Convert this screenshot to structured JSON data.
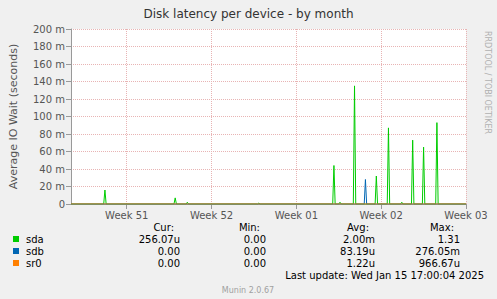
{
  "chart_data": {
    "type": "line",
    "title": "Disk latency per device - by month",
    "y_label": "Average IO Wait (seconds)",
    "side_text": "RRDTOOL / TOBI OETIKER",
    "footer": "Last update: Wed Jan 15 17:00:04 2025",
    "credit": "Munin 2.0.67",
    "legend_columns": [
      "Cur:",
      "Min:",
      "Avg:",
      "Max:"
    ],
    "x": [
      0,
      2.7,
      2.8,
      2.9,
      8.5,
      8.6,
      8.7,
      9.5,
      9.6,
      9.7,
      15.4,
      15.5,
      15.6,
      21.6,
      21.7,
      21.8,
      22.1,
      22.2,
      22.3,
      23.3,
      23.4,
      23.5,
      24.2,
      24.3,
      24.4,
      25.1,
      25.2,
      25.3,
      26.1,
      26.2,
      26.3,
      27.2,
      27.3,
      27.4,
      28.1,
      28.2,
      28.3,
      29.0,
      29.1,
      29.2,
      30.1,
      30.2,
      30.3,
      32.6
    ],
    "series": [
      {
        "name": "sda",
        "color": "#00cc00",
        "stats": [
          "256.07u",
          "0.00",
          "2.00m",
          "1.31"
        ],
        "values": [
          0,
          0,
          0.016,
          0,
          0,
          0.007,
          0,
          0,
          0.002,
          0,
          0,
          0.001,
          0,
          0,
          0.044,
          0,
          0,
          0.002,
          0,
          0,
          0.135,
          0,
          0,
          0,
          0,
          0,
          0.032,
          0,
          0,
          0.087,
          0,
          0,
          0.002,
          0,
          0,
          0.073,
          0,
          0,
          0.065,
          0,
          0,
          0.093,
          0,
          0
        ]
      },
      {
        "name": "sdb",
        "color": "#0066b3",
        "stats": [
          "0.00",
          "0.00",
          "83.19u",
          "276.05m"
        ],
        "values": [
          0,
          0,
          0,
          0,
          0,
          0,
          0,
          0,
          0,
          0,
          0,
          0,
          0,
          0,
          0,
          0,
          0,
          0,
          0,
          0,
          0,
          0,
          0,
          0.028,
          0,
          0,
          0,
          0,
          0,
          0,
          0,
          0,
          0,
          0,
          0,
          0,
          0,
          0,
          0,
          0,
          0,
          0,
          0,
          0
        ]
      },
      {
        "name": "sr0",
        "color": "#ff8000",
        "stats": [
          "0.00",
          "0.00",
          "1.22u",
          "966.67u"
        ],
        "values": [
          0,
          0,
          0,
          0,
          0,
          0,
          0,
          0,
          0,
          0,
          0,
          0,
          0,
          0,
          0,
          0,
          0,
          0,
          0,
          0,
          0,
          0,
          0,
          0,
          0,
          0,
          0,
          0,
          0,
          0,
          0,
          0,
          0,
          0,
          0,
          0,
          0,
          0,
          0,
          0,
          0,
          0,
          0,
          0
        ]
      }
    ],
    "xlim": [
      0,
      32.6
    ],
    "xticks": [
      {
        "value": 4.6,
        "label": "Week 51"
      },
      {
        "value": 11.6,
        "label": "Week 52"
      },
      {
        "value": 18.6,
        "label": "Week 01"
      },
      {
        "value": 25.6,
        "label": "Week 02"
      },
      {
        "value": 32.6,
        "label": "Week 03"
      }
    ],
    "ylim": [
      0,
      0.2
    ],
    "yticks": [
      0,
      {
        "value": 0.02,
        "label": "20 m"
      },
      {
        "value": 0.04,
        "label": "40 m"
      },
      {
        "value": 0.06,
        "label": "60 m"
      },
      {
        "value": 0.08,
        "label": "80 m"
      },
      {
        "value": 0.1,
        "label": "100 m"
      },
      {
        "value": 0.12,
        "label": "120 m"
      },
      {
        "value": 0.14,
        "label": "140 m"
      },
      {
        "value": 0.16,
        "label": "160 m"
      },
      {
        "value": 0.18,
        "label": "180 m"
      },
      {
        "value": 0.2,
        "label": "200 m"
      }
    ],
    "grid": true
  }
}
